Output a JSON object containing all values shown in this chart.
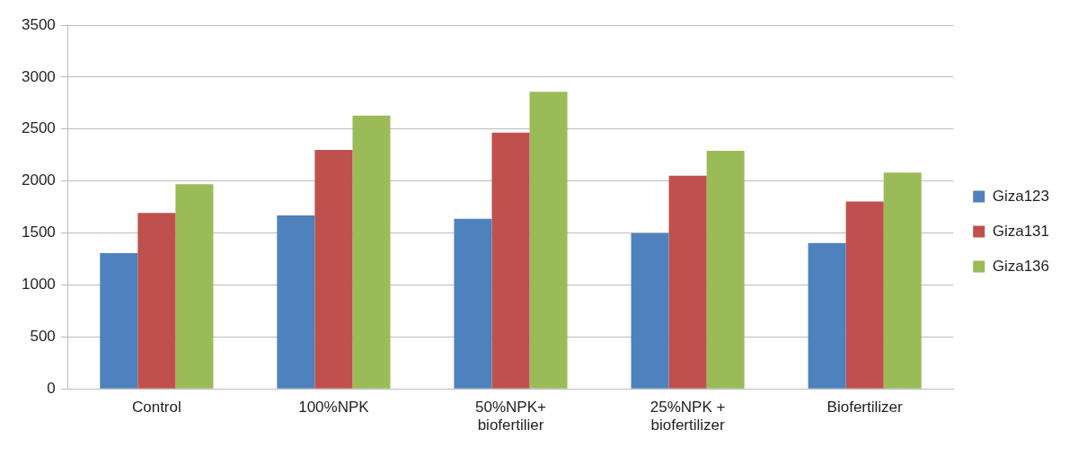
{
  "chart_data": {
    "type": "bar",
    "categories": [
      "Control",
      "100%NPK",
      "50%NPK+ biofertilier",
      "25%NPK + biofertilizer",
      "Biofertilizer"
    ],
    "series": [
      {
        "name": "Giza123",
        "color": "#4f81bd",
        "values": [
          1307,
          1668,
          1636,
          1499,
          1403
        ]
      },
      {
        "name": "Giza131",
        "color": "#c0504d",
        "values": [
          1693,
          2300,
          2466,
          2051,
          1803
        ]
      },
      {
        "name": "Giza136",
        "color": "#9bbb59",
        "values": [
          1968,
          2629,
          2859,
          2290,
          2081
        ]
      }
    ],
    "ylim": [
      0,
      3500
    ],
    "yticks": [
      0,
      500,
      1000,
      1500,
      2000,
      2500,
      3000,
      3500
    ],
    "grid": "y",
    "legend": "right"
  }
}
